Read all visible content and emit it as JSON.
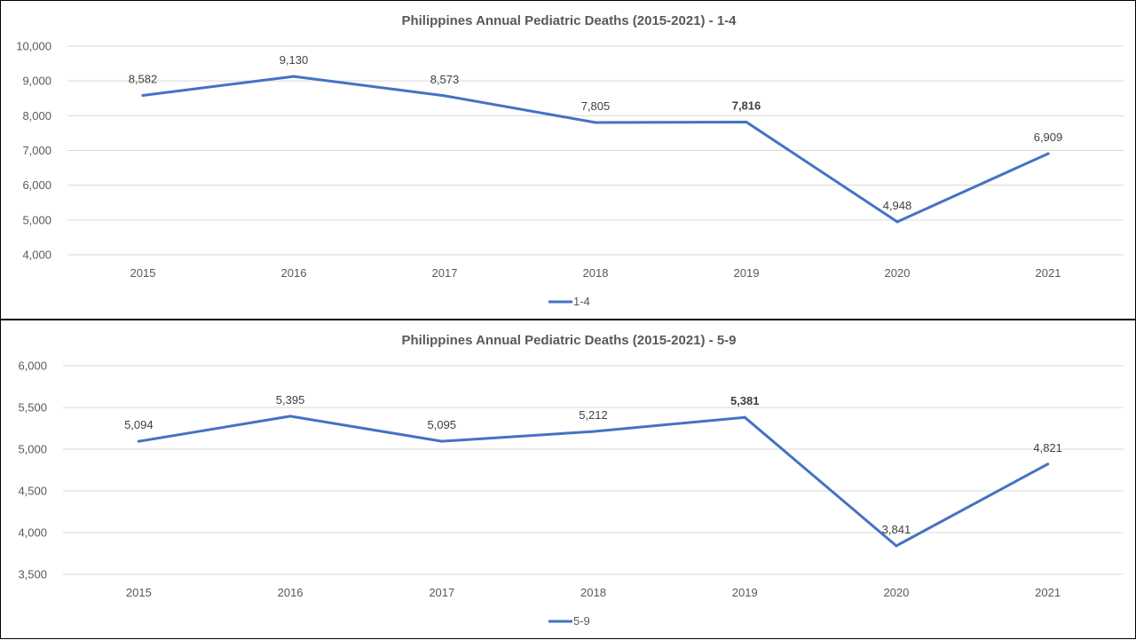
{
  "chart_data": [
    {
      "type": "line",
      "title": "Philippines Annual Pediatric Deaths (2015-2021) - 1-4",
      "xlabel": "",
      "ylabel": "",
      "x": [
        "2015",
        "2016",
        "2017",
        "2018",
        "2019",
        "2020",
        "2021"
      ],
      "ylim": [
        4000,
        10000
      ],
      "yticks": [
        4000,
        5000,
        6000,
        7000,
        8000,
        9000,
        10000
      ],
      "ytick_labels": [
        "4,000",
        "5,000",
        "6,000",
        "7,000",
        "8,000",
        "9,000",
        "10,000"
      ],
      "grid": true,
      "legend_position": "bottom",
      "series": [
        {
          "name": "1-4",
          "color": "#4472c4",
          "values": [
            8582,
            9130,
            8573,
            7805,
            7816,
            4948,
            6909
          ],
          "labels": [
            "8,582",
            "9,130",
            "8,573",
            "7,805",
            "7,816",
            "4,948",
            "6,909"
          ],
          "bold_label_index": 4
        }
      ]
    },
    {
      "type": "line",
      "title": "Philippines Annual Pediatric Deaths (2015-2021) - 5-9",
      "xlabel": "",
      "ylabel": "",
      "x": [
        "2015",
        "2016",
        "2017",
        "2018",
        "2019",
        "2020",
        "2021"
      ],
      "ylim": [
        3500,
        6000
      ],
      "yticks": [
        3500,
        4000,
        4500,
        5000,
        5500,
        6000
      ],
      "ytick_labels": [
        "3,500",
        "4,000",
        "4,500",
        "5,000",
        "5,500",
        "6,000"
      ],
      "grid": true,
      "legend_position": "bottom",
      "series": [
        {
          "name": "5-9",
          "color": "#4472c4",
          "values": [
            5094,
            5395,
            5095,
            5212,
            5381,
            3841,
            4821
          ],
          "labels": [
            "5,094",
            "5,395",
            "5,095",
            "5,212",
            "5,381",
            "3,841",
            "4,821"
          ],
          "bold_label_index": 4
        }
      ]
    }
  ]
}
